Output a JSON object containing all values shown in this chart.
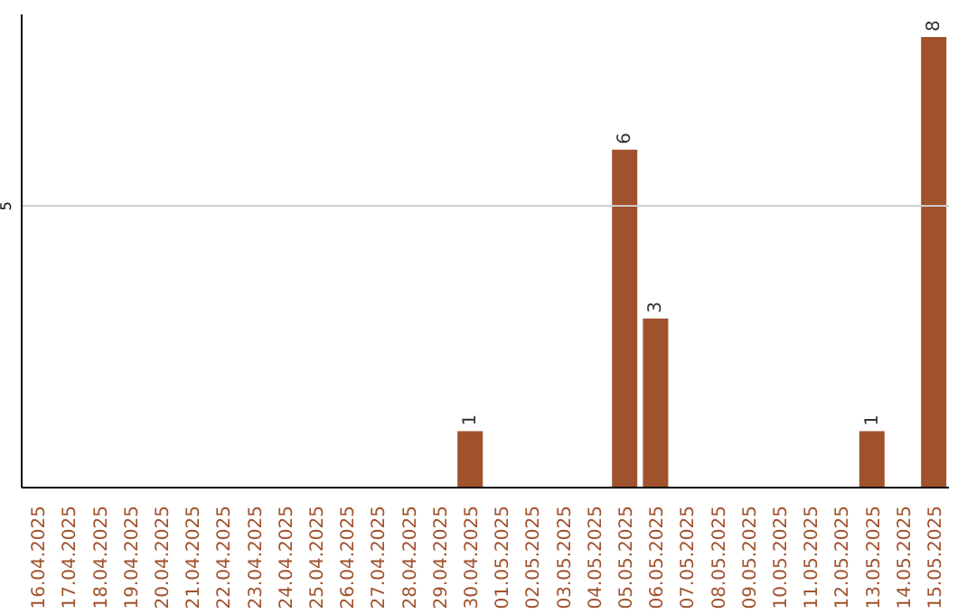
{
  "chart_data": {
    "type": "bar",
    "categories": [
      "16.04.2025",
      "17.04.2025",
      "18.04.2025",
      "19.04.2025",
      "20.04.2025",
      "21.04.2025",
      "22.04.2025",
      "23.04.2025",
      "24.04.2025",
      "25.04.2025",
      "26.04.2025",
      "27.04.2025",
      "28.04.2025",
      "29.04.2025",
      "30.04.2025",
      "01.05.2025",
      "02.05.2025",
      "03.05.2025",
      "04.05.2025",
      "05.05.2025",
      "06.05.2025",
      "07.05.2025",
      "08.05.2025",
      "09.05.2025",
      "10.05.2025",
      "11.05.2025",
      "12.05.2025",
      "13.05.2025",
      "14.05.2025",
      "15.05.2025"
    ],
    "values": [
      null,
      null,
      null,
      null,
      null,
      null,
      null,
      null,
      null,
      null,
      null,
      null,
      null,
      null,
      1,
      null,
      null,
      null,
      null,
      6,
      3,
      null,
      null,
      null,
      null,
      null,
      null,
      1,
      null,
      8
    ],
    "ylim": [
      0,
      8.4
    ],
    "ref_lines": [
      {
        "axis": "y",
        "value": 5,
        "label": "5",
        "color": "#cccccc"
      }
    ],
    "color": "#a0522d",
    "data_labels": true
  }
}
